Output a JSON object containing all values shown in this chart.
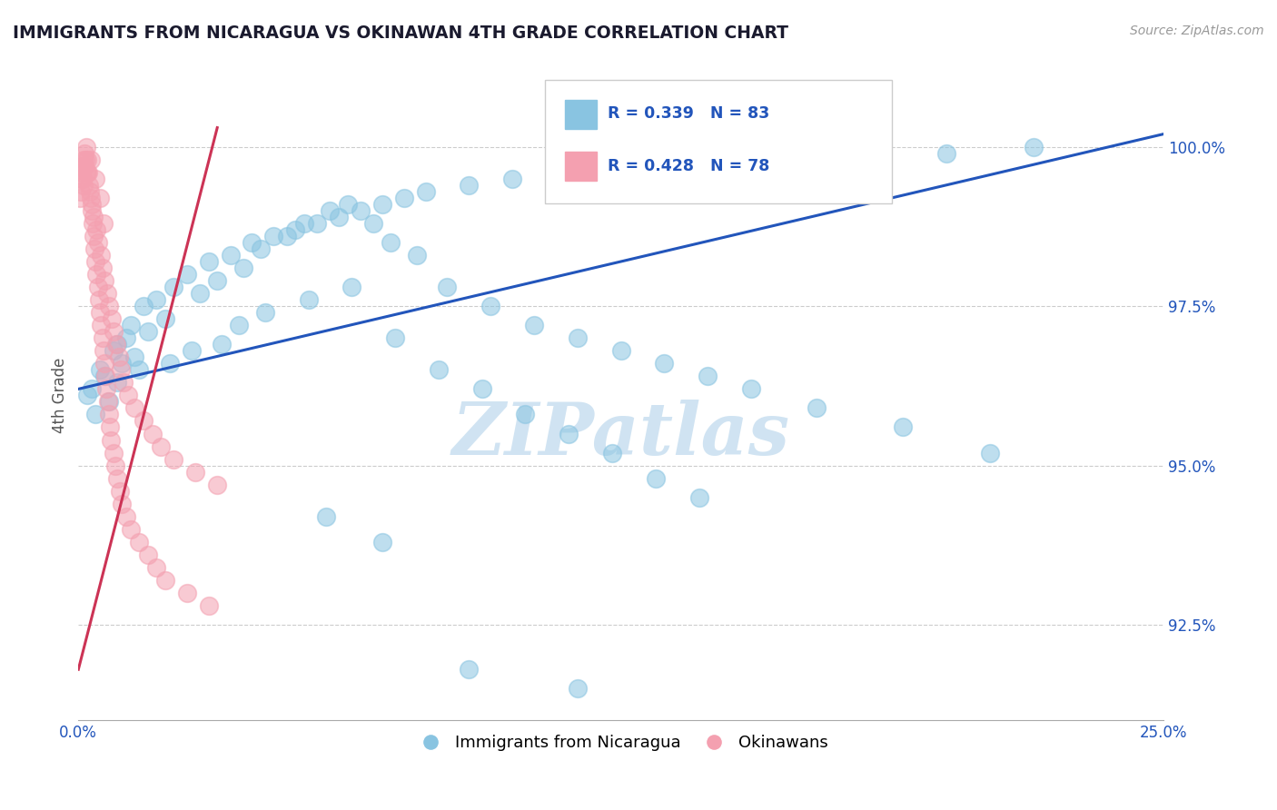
{
  "title": "IMMIGRANTS FROM NICARAGUA VS OKINAWAN 4TH GRADE CORRELATION CHART",
  "source": "Source: ZipAtlas.com",
  "ylabel": "4th Grade",
  "xlim": [
    0.0,
    25.0
  ],
  "ylim": [
    91.0,
    101.2
  ],
  "yticks": [
    92.5,
    95.0,
    97.5,
    100.0
  ],
  "ytick_labels": [
    "92.5%",
    "95.0%",
    "97.5%",
    "100.0%"
  ],
  "blue_R": 0.339,
  "blue_N": 83,
  "pink_R": 0.428,
  "pink_N": 78,
  "blue_color": "#89C4E1",
  "pink_color": "#F4A0B0",
  "blue_line_color": "#2255BB",
  "pink_line_color": "#CC3355",
  "legend_label_blue": "Immigrants from Nicaragua",
  "legend_label_pink": "Okinawans",
  "watermark": "ZIPatlas",
  "watermark_color": "#C8DFF0",
  "title_color": "#1a1a2e",
  "axis_label_color": "#555555",
  "stat_label_color": "#2255BB",
  "background_color": "#ffffff",
  "blue_scatter_x": [
    0.5,
    0.8,
    1.2,
    1.5,
    0.3,
    0.6,
    0.9,
    1.1,
    1.8,
    2.2,
    2.5,
    3.0,
    3.5,
    4.0,
    4.5,
    5.0,
    5.5,
    6.0,
    6.5,
    7.0,
    7.5,
    8.0,
    9.0,
    10.0,
    11.0,
    12.0,
    13.0,
    14.0,
    15.0,
    16.5,
    18.0,
    20.0,
    22.0,
    0.4,
    0.7,
    1.0,
    1.3,
    1.6,
    2.0,
    2.8,
    3.2,
    3.8,
    4.2,
    4.8,
    5.2,
    5.8,
    6.2,
    6.8,
    7.2,
    7.8,
    8.5,
    9.5,
    10.5,
    11.5,
    12.5,
    13.5,
    14.5,
    15.5,
    17.0,
    19.0,
    21.0,
    0.2,
    0.9,
    1.4,
    2.1,
    2.6,
    3.3,
    3.7,
    4.3,
    5.3,
    6.3,
    7.3,
    8.3,
    9.3,
    10.3,
    11.3,
    12.3,
    13.3,
    14.3,
    5.7,
    7.0,
    9.0,
    11.5
  ],
  "blue_scatter_y": [
    96.5,
    96.8,
    97.2,
    97.5,
    96.2,
    96.4,
    96.9,
    97.0,
    97.6,
    97.8,
    98.0,
    98.2,
    98.3,
    98.5,
    98.6,
    98.7,
    98.8,
    98.9,
    99.0,
    99.1,
    99.2,
    99.3,
    99.4,
    99.5,
    99.6,
    99.7,
    99.8,
    99.5,
    99.3,
    99.6,
    99.8,
    99.9,
    100.0,
    95.8,
    96.0,
    96.6,
    96.7,
    97.1,
    97.3,
    97.7,
    97.9,
    98.1,
    98.4,
    98.6,
    98.8,
    99.0,
    99.1,
    98.8,
    98.5,
    98.3,
    97.8,
    97.5,
    97.2,
    97.0,
    96.8,
    96.6,
    96.4,
    96.2,
    95.9,
    95.6,
    95.2,
    96.1,
    96.3,
    96.5,
    96.6,
    96.8,
    96.9,
    97.2,
    97.4,
    97.6,
    97.8,
    97.0,
    96.5,
    96.2,
    95.8,
    95.5,
    95.2,
    94.8,
    94.5,
    94.2,
    93.8,
    91.8,
    91.5
  ],
  "pink_scatter_x": [
    0.05,
    0.08,
    0.1,
    0.12,
    0.15,
    0.18,
    0.2,
    0.22,
    0.25,
    0.28,
    0.3,
    0.32,
    0.35,
    0.38,
    0.4,
    0.42,
    0.45,
    0.48,
    0.5,
    0.52,
    0.55,
    0.58,
    0.6,
    0.62,
    0.65,
    0.68,
    0.7,
    0.72,
    0.75,
    0.8,
    0.85,
    0.9,
    0.95,
    1.0,
    1.1,
    1.2,
    1.4,
    1.6,
    1.8,
    2.0,
    2.5,
    3.0,
    0.06,
    0.09,
    0.13,
    0.17,
    0.21,
    0.26,
    0.31,
    0.36,
    0.41,
    0.46,
    0.51,
    0.56,
    0.61,
    0.66,
    0.71,
    0.76,
    0.82,
    0.88,
    0.93,
    0.98,
    1.05,
    1.15,
    1.3,
    1.5,
    1.7,
    1.9,
    2.2,
    2.7,
    3.2,
    0.04,
    0.11,
    0.19,
    0.29,
    0.39,
    0.49,
    0.59
  ],
  "pink_scatter_y": [
    99.5,
    99.6,
    99.7,
    99.8,
    99.9,
    100.0,
    99.8,
    99.6,
    99.4,
    99.2,
    99.0,
    98.8,
    98.6,
    98.4,
    98.2,
    98.0,
    97.8,
    97.6,
    97.4,
    97.2,
    97.0,
    96.8,
    96.6,
    96.4,
    96.2,
    96.0,
    95.8,
    95.6,
    95.4,
    95.2,
    95.0,
    94.8,
    94.6,
    94.4,
    94.2,
    94.0,
    93.8,
    93.6,
    93.4,
    93.2,
    93.0,
    92.8,
    99.3,
    99.5,
    99.7,
    99.8,
    99.6,
    99.3,
    99.1,
    98.9,
    98.7,
    98.5,
    98.3,
    98.1,
    97.9,
    97.7,
    97.5,
    97.3,
    97.1,
    96.9,
    96.7,
    96.5,
    96.3,
    96.1,
    95.9,
    95.7,
    95.5,
    95.3,
    95.1,
    94.9,
    94.7,
    99.2,
    99.4,
    99.6,
    99.8,
    99.5,
    99.2,
    98.8
  ],
  "blue_trend_x": [
    0.0,
    25.0
  ],
  "blue_trend_y": [
    96.2,
    100.2
  ],
  "pink_trend_x": [
    0.0,
    3.2
  ],
  "pink_trend_y": [
    91.8,
    100.3
  ]
}
